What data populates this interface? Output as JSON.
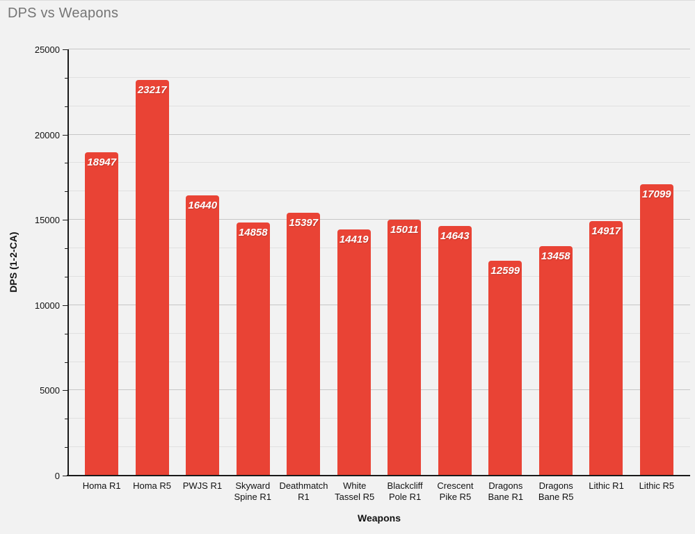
{
  "title": "DPS vs Weapons",
  "colors": {
    "background": "#f2f2f2",
    "title_text": "#757575",
    "bar": "#e94335",
    "bar_label_text": "#ffffff",
    "axis": "#1a1a1a",
    "gridline_major": "#c6c6c6",
    "gridline_minor": "#e0e0e0"
  },
  "chart_data": {
    "type": "bar",
    "title": "DPS vs Weapons",
    "xlabel": "Weapons",
    "ylabel": "DPS (1-2-CA)",
    "categories": [
      "Homa R1",
      "Homa R5",
      "PWJS R1",
      "Skyward Spine R1",
      "Deathmatch R1",
      "White Tassel R5",
      "Blackcliff Pole R1",
      "Crescent Pike R5",
      "Dragons Bane R1",
      "Dragons Bane R5",
      "Lithic R1",
      "Lithic R5"
    ],
    "values": [
      18947,
      23217,
      16440,
      14858,
      15397,
      14419,
      15011,
      14643,
      12599,
      13458,
      14917,
      17099
    ],
    "data_labels": [
      "18947",
      "23217",
      "16440",
      "14858",
      "15397",
      "14419",
      "15011",
      "14643",
      "12599",
      "13458",
      "14917",
      "17099"
    ],
    "ylim": [
      0,
      25000
    ],
    "y_ticks": [
      0,
      5000,
      10000,
      15000,
      20000,
      25000
    ],
    "y_tick_labels": [
      "0",
      "5000",
      "10000",
      "15000",
      "20000",
      "25000"
    ],
    "minor_gridlines_per_interval": 2,
    "grid": true,
    "legend": "none",
    "bar_color": "#e94335"
  }
}
